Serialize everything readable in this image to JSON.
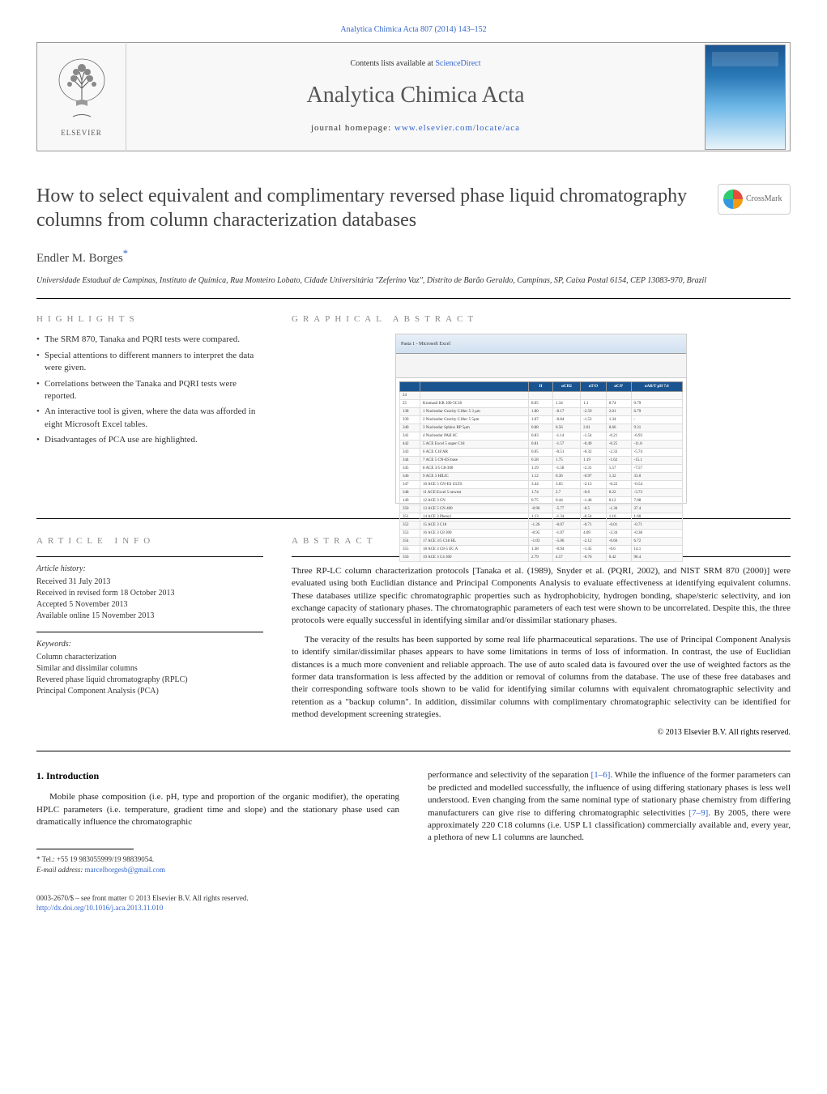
{
  "journal_ref_link": "Analytica Chimica Acta 807 (2014) 143–152",
  "header": {
    "publisher": "ELSEVIER",
    "contents_prefix": "Contents lists available at ",
    "contents_link": "ScienceDirect",
    "journal_title": "Analytica Chimica Acta",
    "homepage_prefix": "journal homepage: ",
    "homepage_url": "www.elsevier.com/locate/aca"
  },
  "crossmark_label": "CrossMark",
  "article": {
    "title": "How to select equivalent and complimentary reversed phase liquid chromatography columns from column characterization databases",
    "author": "Endler M. Borges",
    "author_mark": "*",
    "affiliation": "Universidade Estadual de Campinas, Instituto de Química, Rua Monteiro Lobato, Cidade Universitária \"Zeferino Vaz\", Distrito de Barão Geraldo, Campinas, SP, Caixa Postal 6154, CEP 13083-970, Brazil"
  },
  "highlights": {
    "heading": "HIGHLIGHTS",
    "items": [
      "The SRM 870, Tanaka and PQRI tests were compared.",
      "Special attentions to different manners to interpret the data were given.",
      "Correlations between the Tanaka and PQRI tests were reported.",
      "An interactive tool is given, where the data was afforded in eight Microsoft Excel tables.",
      "Disadvantages of PCA use are highlighted."
    ]
  },
  "graphical_abstract": {
    "heading": "GRAPHICAL ABSTRACT",
    "excel_title": "Pasta 1 - Microsoft Excel",
    "table_headers": [
      "",
      "",
      "H",
      "αCH2",
      "αT/O",
      "αC/P",
      "αAB/T pH 7.6"
    ],
    "rows": [
      [
        "24",
        "",
        "",
        "",
        "",
        "",
        ""
      ],
      [
        "25",
        "Kromasil KR 100-5C18",
        "8.05",
        "1.34",
        "1.1",
        "0.74",
        "0.79"
      ],
      [
        "138",
        "1 Nucleodur Gravity C18ec 5 3 μm",
        "1.80",
        "-0.17",
        "-2.59",
        "2.01",
        "6.79"
      ],
      [
        "339",
        "2 Nucleodur Gravity C18ec 5 5μm",
        "1.07",
        "-0.84",
        "-1.53",
        "1.34",
        "-"
      ],
      [
        "340",
        "3 Nucleodur Sphinx RP 5μm",
        "0.88",
        "0.56",
        "2.01",
        "0.66",
        "9.31"
      ],
      [
        "341",
        "4 Nucleodur PAH 6C",
        "0.83",
        "-1.14",
        "-1.54",
        "-0.21",
        "-6.93"
      ],
      [
        "442",
        "5 ACE Excel 5 super C18",
        "0.81",
        "-1.57",
        "-0.49",
        "-0.25",
        "-11.8"
      ],
      [
        "343",
        "6 ACE C18 AR",
        "0.05",
        "-0.51",
        "-0.32",
        "-2.33",
        "-5.74"
      ],
      [
        "344",
        "7 ACE 5 CN-ES base",
        "0.58",
        "1.75",
        "1.19",
        "-1.62",
        "-15.1"
      ],
      [
        "345",
        "8 ACE 3/5 C8-300",
        "1.19",
        "-1.58",
        "-2.31",
        "1.57",
        "-7.57"
      ],
      [
        "346",
        "9 ACE 3 HILIC",
        "1.12",
        "0.36",
        "-0.97",
        "1.32",
        "33.0"
      ],
      [
        "347",
        "10 ACE 5 CN-ES ULTS",
        "3.44",
        "3.65",
        "-2.13",
        "-0.22",
        "-0.54"
      ],
      [
        "348",
        "11 ACE Excel 5 newest",
        "1.74",
        "2.7",
        "-0.6",
        "0.22",
        "-3.73"
      ],
      [
        "149",
        "12 ACE 3 CN",
        "0.75",
        "0.44",
        "-1.46",
        "0.12",
        "7.08"
      ],
      [
        "350",
        "13 ACE 5 CN 400",
        "-0.96",
        "-5.77",
        "-0.5",
        "-1.36",
        "37.4"
      ],
      [
        "351",
        "14 ACE 3 Phenyl",
        "1.13",
        "-1.34",
        "-0.54",
        "1.16",
        "1.60"
      ],
      [
        "352",
        "15 ACE 3 C18",
        "-1.26",
        "-0.07",
        "-0.71",
        "-0.01",
        "-0.71"
      ],
      [
        "353",
        "16 ACE 3 C8 300",
        "-0.95",
        "-1.07",
        "4.09",
        "-3.34",
        "-0.38"
      ],
      [
        "354",
        "17 ACE 3/5 C18 HL",
        "-1.03",
        "-5.06",
        "-2.12",
        "-0.66",
        "6.72"
      ],
      [
        "355",
        "18 ACE 3 C8-5 EC A",
        "1.38",
        "-0.94",
        "-1.45",
        "-0.6",
        "14.1"
      ],
      [
        "356",
        "19 ACE 3 C4 300",
        "2.79",
        "4.57",
        "-0.76",
        "0.42",
        "90.4"
      ]
    ]
  },
  "article_info": {
    "heading": "ARTICLE INFO",
    "history_label": "Article history:",
    "history": [
      "Received 31 July 2013",
      "Received in revised form 18 October 2013",
      "Accepted 5 November 2013",
      "Available online 15 November 2013"
    ],
    "keywords_label": "Keywords:",
    "keywords": [
      "Column characterization",
      "Similar and dissimilar columns",
      "Revered phase liquid chromatography (RPLC)",
      "Principal Component Analysis (PCA)"
    ]
  },
  "abstract": {
    "heading": "ABSTRACT",
    "paragraphs": [
      "Three RP-LC column characterization protocols [Tanaka et al. (1989), Snyder et al. (PQRI, 2002), and NIST SRM 870 (2000)] were evaluated using both Euclidian distance and Principal Components Analysis to evaluate effectiveness at identifying equivalent columns. These databases utilize specific chromatographic properties such as hydrophobicity, hydrogen bonding, shape/steric selectivity, and ion exchange capacity of stationary phases. The chromatographic parameters of each test were shown to be uncorrelated. Despite this, the three protocols were equally successful in identifying similar and/or dissimilar stationary phases.",
      "The veracity of the results has been supported by some real life pharmaceutical separations. The use of Principal Component Analysis to identify similar/dissimilar phases appears to have some limitations in terms of loss of information. In contrast, the use of Euclidian distances is a much more convenient and reliable approach. The use of auto scaled data is favoured over the use of weighted factors as the former data transformation is less affected by the addition or removal of columns from the database. The use of these free databases and their corresponding software tools shown to be valid for identifying similar columns with equivalent chromatographic selectivity and retention as a \"backup column\". In addition, dissimilar columns with complimentary chromatographic selectivity can be identified for method development screening strategies."
    ],
    "copyright": "© 2013 Elsevier B.V. All rights reserved."
  },
  "body": {
    "section_number": "1.",
    "section_title": "Introduction",
    "left_paragraph": "Mobile phase composition (i.e. pH, type and proportion of the organic modifier), the operating HPLC parameters (i.e. temperature, gradient time and slope) and the stationary phase used can dramatically influence the chromatographic",
    "right_paragraph_1": "performance and selectivity of the separation ",
    "ref1": "[1–6]",
    "right_paragraph_2": ". While the influence of the former parameters can be predicted and modelled successfully, the influence of using differing stationary phases is less well understood. Even changing from the same nominal type of stationary phase chemistry from differing manufacturers can give rise to differing chromatographic selectivities ",
    "ref2": "[7–9]",
    "right_paragraph_3": ". By 2005, there were approximately 220 C18 columns (i.e. USP L1 classification) commercially available and, every year, a plethora of new L1 columns are launched."
  },
  "footnote": {
    "tel_label": "* Tel.: +55 19 983055999/19 98839054.",
    "email_label": "E-mail address:",
    "email": "marcelborgesb@gmail.com"
  },
  "footer": {
    "issn_line": "0003-2670/$ – see front matter © 2013 Elsevier B.V. All rights reserved.",
    "doi": "http://dx.doi.org/10.1016/j.aca.2013.11.010"
  },
  "colors": {
    "link": "#3366cc",
    "heading_gray": "#888888",
    "text": "#222222",
    "table_header_bg": "#1a5490"
  }
}
